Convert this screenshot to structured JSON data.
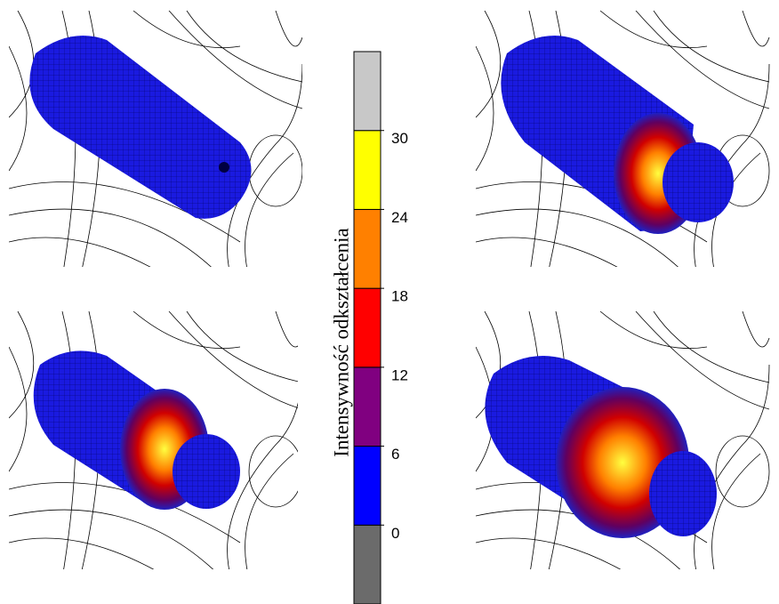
{
  "colorbar": {
    "label": "Intensywność odkształcenia",
    "ticks": [
      0,
      6,
      12,
      18,
      24,
      30
    ],
    "lim": [
      -6,
      36
    ],
    "colors": [
      "#6b6b6b",
      "#0000ff",
      "#800080",
      "#ff0000",
      "#ff8000",
      "#ffff00",
      "#c8c8c8"
    ]
  }
}
